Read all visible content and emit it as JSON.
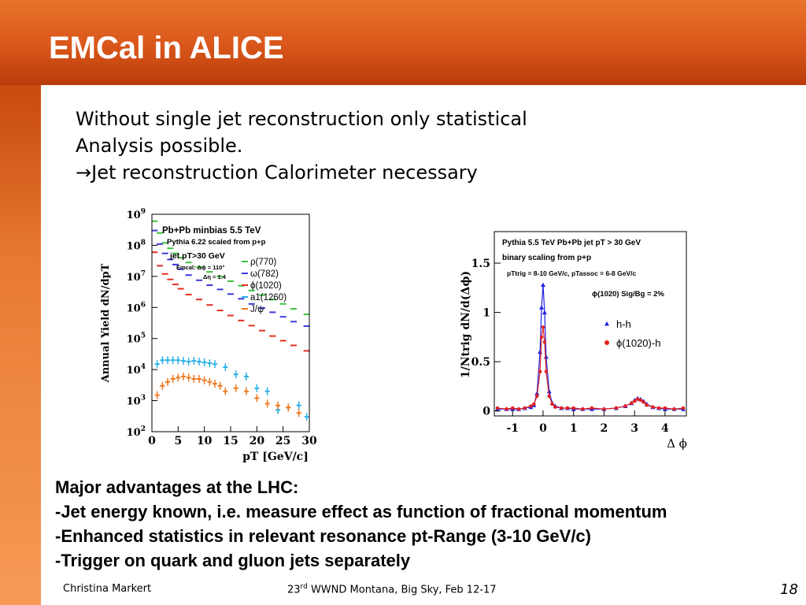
{
  "slide": {
    "title": "EMCal in ALICE",
    "intro_lines": [
      "Without single jet reconstruction only statistical",
      "Analysis possible.",
      "→Jet reconstruction Calorimeter necessary"
    ],
    "advantages": [
      "Major advantages at the LHC:",
      "-Jet energy known, i.e. measure effect as function of fractional momentum",
      "-Enhanced statistics in relevant resonance pt-Range (3-10 GeV/c)",
      "-Trigger on quark and gluon jets separately"
    ],
    "footer": {
      "author": "Christina Markert",
      "conference_prefix": "23",
      "conference_sup": "rd",
      "conference_rest": " WWND Montana, Big Sky, Feb  12-17",
      "page_number": "18"
    }
  },
  "chart_data": [
    {
      "type": "scatter",
      "ylabel": "Annual Yield dN/dpT",
      "xlabel": "pT [GeV/c]",
      "xlim": [
        0,
        30
      ],
      "ylim": [
        100,
        1000000000
      ],
      "log_y": true,
      "x_ticks": [
        "0",
        "5",
        "10",
        "15",
        "20",
        "25",
        "30"
      ],
      "y_ticks": [
        "10^2",
        "10^3",
        "10^4",
        "10^5",
        "10^6",
        "10^7",
        "10^8",
        "10^9"
      ],
      "annotations": [
        "Pb+Pb minbias 5.5 TeV",
        "Pythia 6.22 scaled from p+p",
        "jet pT>30 GeV",
        "Emcal: Δϕ = 110°",
        "Δη = 1.4"
      ],
      "legend_position": "top-right",
      "series": [
        {
          "name": "ρ(770)",
          "color": "#3cc43c",
          "x": [
            0.5,
            1.5,
            2.5,
            3.5,
            4.5,
            5.5,
            7,
            9,
            11,
            13,
            15,
            17,
            19,
            21,
            23,
            25,
            27,
            29.5
          ],
          "y": [
            600000000,
            250000000,
            120000000,
            80000000,
            55000000,
            40000000,
            28000000,
            20000000,
            14000000,
            10000000,
            7000000,
            5000000,
            3500000,
            2500000,
            1800000,
            1300000,
            900000,
            600000
          ]
        },
        {
          "name": "ω(782)",
          "color": "#3a3adc",
          "x": [
            0.5,
            1.5,
            2.5,
            3.5,
            4.5,
            5.5,
            7,
            9,
            11,
            13,
            15,
            17,
            19,
            21,
            23,
            25,
            27,
            29.5
          ],
          "y": [
            300000000,
            110000000,
            55000000,
            35000000,
            24000000,
            17000000,
            11000000,
            7500000,
            5200000,
            3800000,
            2700000,
            1900000,
            1300000,
            950000,
            700000,
            500000,
            350000,
            250000
          ]
        },
        {
          "name": "ϕ(1020)",
          "color": "#e03020",
          "x": [
            0.5,
            1.5,
            2.5,
            3.5,
            4.5,
            5.5,
            7,
            9,
            11,
            13,
            15,
            17,
            19,
            21,
            23,
            25,
            27,
            29.5
          ],
          "y": [
            60000000,
            22000000,
            12000000,
            8000000,
            5500000,
            4000000,
            2600000,
            1800000,
            1200000,
            800000,
            550000,
            380000,
            260000,
            180000,
            120000,
            85000,
            60000,
            40000
          ]
        },
        {
          "name": "a1(1260)",
          "color": "#28b0e8",
          "x": [
            1,
            2,
            3,
            4,
            5,
            6,
            7,
            8,
            9,
            10,
            11,
            12,
            14,
            16,
            18,
            20,
            22,
            24,
            26,
            28,
            29.5
          ],
          "y": [
            15000,
            20000,
            20000,
            20000,
            20000,
            19000,
            18000,
            19000,
            18000,
            17000,
            16000,
            15000,
            12000,
            7000,
            6000,
            2500,
            2000,
            500,
            600,
            700,
            300
          ]
        },
        {
          "name": "J/ψ",
          "color": "#f07820",
          "x": [
            1,
            2,
            3,
            4,
            5,
            6,
            7,
            8,
            9,
            10,
            11,
            12,
            13,
            14,
            16,
            18,
            20,
            22,
            24,
            26,
            28
          ],
          "y": [
            1500,
            3000,
            4000,
            5000,
            5500,
            6000,
            5500,
            5000,
            5000,
            4500,
            4000,
            3500,
            3000,
            2000,
            2500,
            2000,
            1200,
            800,
            700,
            600,
            400
          ]
        }
      ]
    },
    {
      "type": "scatter",
      "ylabel": "1/Ntrig dN/d(Δϕ)",
      "xlabel": "Δ ϕ",
      "xlim": [
        -1.6,
        4.7
      ],
      "ylim": [
        -0.05,
        1.82
      ],
      "x_ticks": [
        "-1",
        "0",
        "1",
        "2",
        "3",
        "4"
      ],
      "y_ticks": [
        "0",
        "0.5",
        "1",
        "1.5"
      ],
      "annotations": [
        "Pythia 5.5 TeV Pb+Pb jet pT > 30 GeV",
        "binary scaling from p+p",
        "pTtrig = 8-10 GeV/c, pTassoc = 6-8 GeV/c",
        "ϕ(1020) Sig/Bg = 2%"
      ],
      "legend_position": "right",
      "series": [
        {
          "name": "h-h",
          "color": "#2020e0",
          "x": [
            -1.5,
            -1.2,
            -1.0,
            -0.8,
            -0.6,
            -0.4,
            -0.3,
            -0.2,
            -0.1,
            -0.05,
            0,
            0.05,
            0.1,
            0.2,
            0.3,
            0.4,
            0.6,
            0.8,
            1.0,
            1.3,
            1.6,
            2.0,
            2.4,
            2.7,
            2.9,
            3.0,
            3.1,
            3.2,
            3.3,
            3.4,
            3.6,
            3.8,
            4.0,
            4.3,
            4.6
          ],
          "y": [
            0.02,
            0.02,
            0.02,
            0.02,
            0.03,
            0.04,
            0.06,
            0.18,
            0.6,
            1.05,
            1.28,
            1.0,
            0.55,
            0.2,
            0.08,
            0.05,
            0.03,
            0.03,
            0.02,
            0.02,
            0.02,
            0.02,
            0.03,
            0.05,
            0.08,
            0.11,
            0.13,
            0.12,
            0.1,
            0.07,
            0.04,
            0.03,
            0.02,
            0.02,
            0.02
          ]
        },
        {
          "name": "ϕ(1020)-h",
          "color": "#e02020",
          "x": [
            -1.5,
            -1.2,
            -1.0,
            -0.8,
            -0.6,
            -0.4,
            -0.3,
            -0.2,
            -0.1,
            -0.05,
            0,
            0.05,
            0.1,
            0.2,
            0.3,
            0.4,
            0.6,
            0.8,
            1.0,
            1.3,
            1.6,
            2.0,
            2.4,
            2.7,
            2.9,
            3.0,
            3.1,
            3.2,
            3.3,
            3.4,
            3.6,
            3.8,
            4.0,
            4.3,
            4.6
          ],
          "y": [
            0.03,
            0.02,
            0.03,
            0.02,
            0.03,
            0.05,
            0.07,
            0.15,
            0.4,
            0.75,
            0.85,
            0.7,
            0.4,
            0.15,
            0.07,
            0.04,
            0.03,
            0.03,
            0.03,
            0.02,
            0.03,
            0.02,
            0.03,
            0.05,
            0.08,
            0.1,
            0.12,
            0.11,
            0.09,
            0.06,
            0.04,
            0.03,
            0.03,
            0.02,
            0.03
          ]
        }
      ]
    }
  ]
}
